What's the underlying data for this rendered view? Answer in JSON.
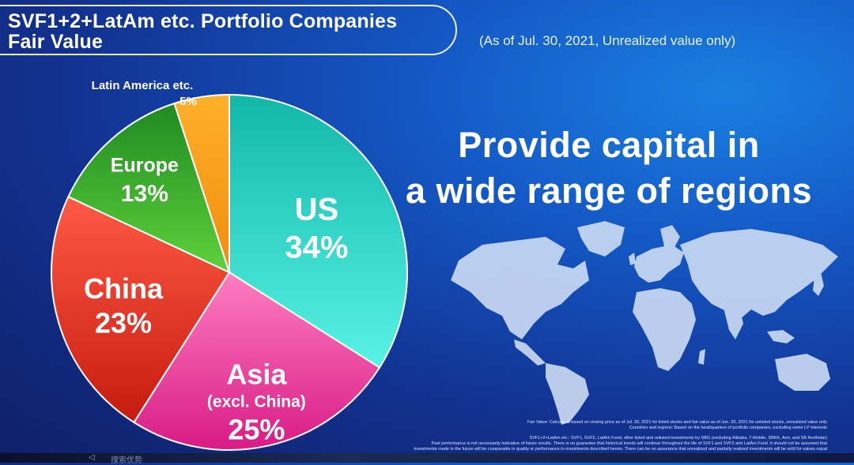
{
  "header": {
    "title_line1": "SVF1+2+LatAm etc. Portfolio Companies",
    "title_line2": "Fair Value",
    "as_of": "(As of Jul. 30, 2021, Unrealized value only)"
  },
  "headline": {
    "line1": "Provide capital in",
    "line2": "a wide range of regions"
  },
  "chart_data": {
    "type": "pie",
    "title": "SVF1+2+LatAm etc. Portfolio Companies Fair Value",
    "slices": [
      {
        "name": "US",
        "sublabel": "",
        "value": 34,
        "label": "34%",
        "color": "#3fe0d2"
      },
      {
        "name": "Asia",
        "sublabel": "(excl. China)",
        "value": 25,
        "label": "25%",
        "color": "#e6349a"
      },
      {
        "name": "China",
        "sublabel": "",
        "value": 23,
        "label": "23%",
        "color": "#e23a25"
      },
      {
        "name": "Europe",
        "sublabel": "",
        "value": 13,
        "label": "13%",
        "color": "#3fbf2e"
      },
      {
        "name": "Latin America etc.",
        "sublabel": "",
        "value": 5,
        "label": "5%",
        "color": "#f7a21c"
      }
    ],
    "start_angle_deg": 0,
    "direction": "clockwise"
  },
  "footnotes": {
    "line1": "Fair Value: Calculated based on closing price as of Jul. 30, 2021 for listed stocks and fair value as of Jun. 30, 2021 for unlisted stocks, unrealized value only",
    "line2": "Countries and regions: Based on the headquarters of portfolio companies, excluding some LP interests",
    "line3": "SVF1+2+LatAm etc.: SVF1, SVF2, LatAm Fund, other listed and unlisted investments by SBG (excluding Alibaba, T-Mobile, SBKK, Arm, and SB Northstar)",
    "line4": "Past performance is not necessarily indicative of future results. There is no guarantee that historical trends will continue throughout the life of SVF1 and SVF2 and LatAm Fund. It should not be assumed that",
    "line5": "investments made in the future will be comparable in quality or performance to investments described herein. There can be no assurance that unrealized and partially realized investments will be sold for values equal"
  },
  "colors": {
    "background_dark": "#0f1f66",
    "background_light": "#1a7fe0",
    "map": "#c9d9f2"
  },
  "bottom_strip": {
    "glyph": "◁",
    "text": "搜索优势"
  }
}
